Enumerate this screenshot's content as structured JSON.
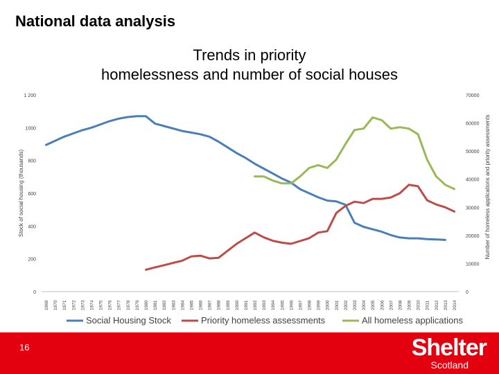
{
  "slide": {
    "header": "National data analysis",
    "number": "16",
    "logo_main": "Shelter",
    "logo_sub": "Scotland"
  },
  "chart_data": {
    "type": "line",
    "title_lines": [
      "Trends in priority",
      "homelessness and number of social houses"
    ],
    "ylabel_left": "Stock of social housing (thousands)",
    "ylabel_right": "Number of homeless applications and priority assessments",
    "ylim_left": [
      0,
      1200
    ],
    "ylim_right": [
      0,
      70000
    ],
    "yticks_left": [
      "0",
      "200",
      "400",
      "600",
      "800",
      "1000",
      "1 200"
    ],
    "yticks_right": [
      "0",
      "10000",
      "20000",
      "30000",
      "40000",
      "50000",
      "60000",
      "70000"
    ],
    "grid": false,
    "legend_position": "bottom",
    "categories": [
      "1969",
      "1970",
      "1971",
      "1972",
      "1973",
      "1974",
      "1975",
      "1976",
      "1977",
      "1978",
      "1979",
      "1980",
      "1981",
      "1982",
      "1983",
      "1984",
      "1985",
      "1986",
      "1987",
      "1988",
      "1989",
      "1990",
      "1991",
      "1992",
      "1993",
      "1994",
      "1995",
      "1996",
      "1997",
      "1998",
      "1999",
      "2000",
      "2001",
      "2002",
      "2003",
      "2004",
      "2005",
      "2006",
      "2007",
      "2008",
      "2009",
      "2010",
      "2011",
      "2012",
      "2013",
      "2014"
    ],
    "series": [
      {
        "name": "Social Housing Stock",
        "axis": "left",
        "color": "#4a7ebb",
        "values": [
          895,
          920,
          945,
          965,
          985,
          1000,
          1020,
          1040,
          1055,
          1065,
          1070,
          1070,
          1025,
          1010,
          995,
          980,
          970,
          960,
          945,
          915,
          880,
          845,
          815,
          780,
          750,
          720,
          690,
          665,
          625,
          600,
          575,
          555,
          550,
          530,
          420,
          395,
          380,
          365,
          345,
          330,
          325,
          325,
          320,
          318,
          315,
          null
        ]
      },
      {
        "name": "Priority homeless assessments",
        "axis": "right",
        "color": "#be4b48",
        "values": [
          null,
          null,
          null,
          null,
          null,
          null,
          null,
          null,
          null,
          null,
          null,
          7800,
          8600,
          9400,
          10200,
          11000,
          12500,
          12800,
          11800,
          12000,
          14500,
          17000,
          19000,
          21000,
          19300,
          18100,
          17400,
          17000,
          18000,
          19000,
          21000,
          21500,
          28000,
          30500,
          32000,
          31500,
          33000,
          33000,
          33500,
          35000,
          38000,
          37500,
          32500,
          31000,
          30000,
          28500
        ]
      },
      {
        "name": "All homeless applications",
        "axis": "right",
        "color": "#98b954",
        "values": [
          null,
          null,
          null,
          null,
          null,
          null,
          null,
          null,
          null,
          null,
          null,
          null,
          null,
          null,
          null,
          null,
          null,
          null,
          null,
          null,
          null,
          null,
          null,
          41000,
          41000,
          39500,
          38500,
          38500,
          41000,
          44000,
          45000,
          44000,
          47000,
          52500,
          57500,
          58000,
          62000,
          61000,
          58000,
          58500,
          58000,
          56000,
          47000,
          41000,
          38000,
          36500
        ]
      }
    ]
  }
}
